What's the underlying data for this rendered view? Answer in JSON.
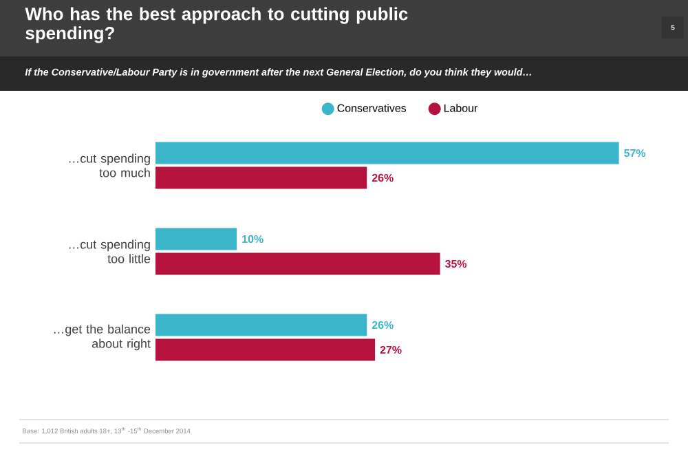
{
  "chart_data": {
    "type": "bar",
    "orientation": "horizontal",
    "title": "Who has the best approach to cutting public spending?",
    "subtitle": "If the Conservative/Labour Party is in government after the next General Election, do you think they would…",
    "categories": [
      "…cut spending too much",
      "…cut spending too little",
      "…get the balance about right"
    ],
    "series": [
      {
        "name": "Conservatives",
        "color": "#3ab5c9",
        "values": [
          57,
          10,
          26
        ],
        "value_labels": [
          "57%",
          "10%",
          "26%"
        ]
      },
      {
        "name": "Labour",
        "color": "#b5123e",
        "values": [
          26,
          35,
          27
        ],
        "value_labels": [
          "26%",
          "35%",
          "27%"
        ]
      }
    ],
    "legend": "top",
    "annotations": [
      "5",
      "Base: 1,012 British adults 18+, 13$^{th}$ -15$^{th}$ December 2014"
    ]
  }
}
